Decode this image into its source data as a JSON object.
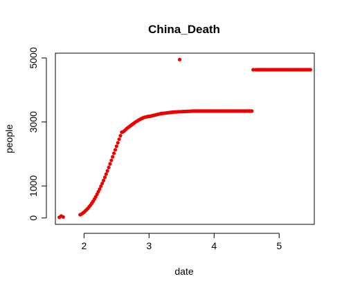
{
  "chart_data": {
    "type": "scatter",
    "title": "China_Death",
    "xlabel": "date",
    "ylabel": "people",
    "xlim": [
      1.56,
      5.54
    ],
    "ylim": [
      -200,
      5150
    ],
    "x_ticks": [
      2,
      3,
      4,
      5
    ],
    "x_tick_labels": [
      "2",
      "3",
      "4",
      "5"
    ],
    "y_ticks": [
      0,
      1000,
      3000,
      5000
    ],
    "y_tick_labels": [
      "0",
      "1000",
      "3000",
      "5000"
    ],
    "grid": false,
    "legend": "none",
    "point_color": "#ee0000",
    "series": [
      {
        "x": [
          1.62,
          1.65,
          1.68,
          1.94,
          1.96,
          1.98,
          2.0,
          2.02,
          2.04,
          2.06,
          2.08,
          2.1,
          2.12,
          2.14,
          2.16,
          2.18,
          2.2,
          2.22,
          2.24,
          2.26,
          2.28,
          2.3,
          2.32,
          2.34,
          2.36,
          2.38,
          2.4,
          2.42,
          2.44,
          2.46,
          2.48,
          2.5,
          2.52,
          2.54,
          2.56,
          2.58,
          2.6,
          2.62,
          2.64,
          2.66,
          2.68,
          2.7,
          2.72,
          2.74,
          2.76,
          2.78,
          2.8,
          2.82,
          2.84,
          2.86,
          2.88,
          2.9,
          2.92,
          2.94,
          2.96,
          2.98,
          3.0,
          3.02,
          3.04,
          3.06,
          3.08,
          3.1,
          3.12,
          3.14,
          3.16,
          3.18,
          3.2,
          3.22,
          3.24,
          3.26,
          3.28,
          3.3,
          3.32,
          3.34,
          3.36,
          3.38,
          3.4,
          3.42,
          3.44,
          3.46,
          3.47,
          3.5,
          3.52,
          3.54,
          3.56,
          3.58,
          3.6,
          3.62,
          3.64,
          3.66,
          3.68,
          3.7,
          3.72,
          3.74,
          3.76,
          3.78,
          3.8,
          3.82,
          3.84,
          3.86,
          3.88,
          3.9,
          3.92,
          3.94,
          3.96,
          3.98,
          4.0,
          4.02,
          4.04,
          4.06,
          4.08,
          4.1,
          4.12,
          4.14,
          4.16,
          4.18,
          4.2,
          4.22,
          4.24,
          4.26,
          4.28,
          4.3,
          4.32,
          4.34,
          4.36,
          4.38,
          4.4,
          4.42,
          4.44,
          4.46,
          4.48,
          4.5,
          4.52,
          4.54,
          4.56,
          4.58,
          4.6,
          4.64,
          4.66,
          4.68,
          4.7,
          4.72,
          4.74,
          4.76,
          4.78,
          4.8,
          4.82,
          4.84,
          4.86,
          4.88,
          4.9,
          4.92,
          4.94,
          4.96,
          4.98,
          5.0,
          5.02,
          5.04,
          5.06,
          5.08,
          5.1,
          5.12,
          5.14,
          5.16,
          5.18,
          5.2,
          5.22,
          5.24,
          5.26,
          5.28,
          5.3,
          5.32,
          5.34,
          5.36,
          5.38,
          5.4,
          5.42,
          5.44,
          5.46,
          5.48
        ],
        "y": [
          20,
          60,
          30,
          100,
          120,
          150,
          180,
          220,
          260,
          300,
          350,
          400,
          460,
          520,
          590,
          660,
          740,
          820,
          900,
          990,
          1080,
          1170,
          1270,
          1370,
          1470,
          1580,
          1690,
          1800,
          1910,
          2020,
          2130,
          2240,
          2350,
          2460,
          2570,
          2680,
          2690,
          2720,
          2760,
          2800,
          2830,
          2860,
          2890,
          2920,
          2950,
          2980,
          3010,
          3030,
          3060,
          3080,
          3100,
          3120,
          3140,
          3150,
          3160,
          3170,
          3175,
          3180,
          3190,
          3200,
          3210,
          3220,
          3230,
          3240,
          3250,
          3260,
          3265,
          3270,
          3275,
          3280,
          3285,
          3290,
          3295,
          3300,
          3305,
          3310,
          3312,
          3314,
          3316,
          3318,
          3320,
          3322,
          3324,
          3326,
          3328,
          3330,
          3332,
          3334,
          3336,
          3338,
          3340,
          3340,
          3340,
          3340,
          3340,
          3340,
          3340,
          3340,
          3340,
          3340,
          3340,
          3340,
          3340,
          3340,
          3340,
          3340,
          3340,
          3340,
          3340,
          3340,
          3340,
          3340,
          3340,
          3340,
          3340,
          3340,
          3340,
          3340,
          3340,
          3340,
          3340,
          3340,
          3340,
          3340,
          3340,
          3340,
          3340,
          3340,
          3340,
          3340,
          3340,
          3340,
          3340,
          3340,
          3340,
          3340,
          4632,
          4632,
          4632,
          4632,
          4632,
          4632,
          4632,
          4632,
          4632,
          4632,
          4632,
          4632,
          4632,
          4632,
          4632,
          4632,
          4632,
          4632,
          4632,
          4632,
          4632,
          4632,
          4632,
          4632,
          4632,
          4632,
          4632,
          4632,
          4632,
          4632,
          4632,
          4632,
          4632,
          4632,
          4632,
          4632,
          4632,
          4632,
          4632,
          4632,
          4632,
          4632,
          4632,
          4632
        ]
      }
    ],
    "outlier": {
      "x": 3.47,
      "y": 4950
    }
  }
}
